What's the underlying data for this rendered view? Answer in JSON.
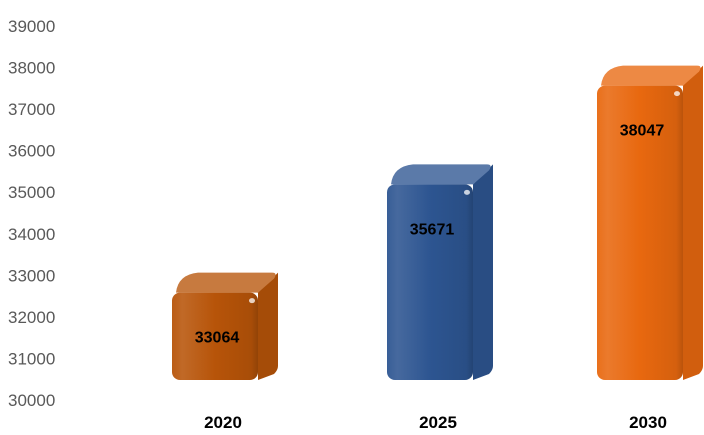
{
  "chart_data": {
    "type": "bar",
    "title": "",
    "xlabel": "",
    "ylabel": "",
    "categories": [
      "2020",
      "2025",
      "2030"
    ],
    "values": [
      33064,
      35671,
      38047
    ],
    "data_labels": [
      "33064",
      "35671",
      "38047"
    ],
    "ylim": [
      30000,
      39000
    ],
    "yticks": [
      "30000",
      "31000",
      "32000",
      "33000",
      "34000",
      "35000",
      "36000",
      "37000",
      "38000",
      "39000"
    ],
    "bar_colors": [
      "#b75409",
      "#2d5591",
      "#e8680f"
    ],
    "bar_style": "3d",
    "grid": false,
    "legend": "none"
  }
}
